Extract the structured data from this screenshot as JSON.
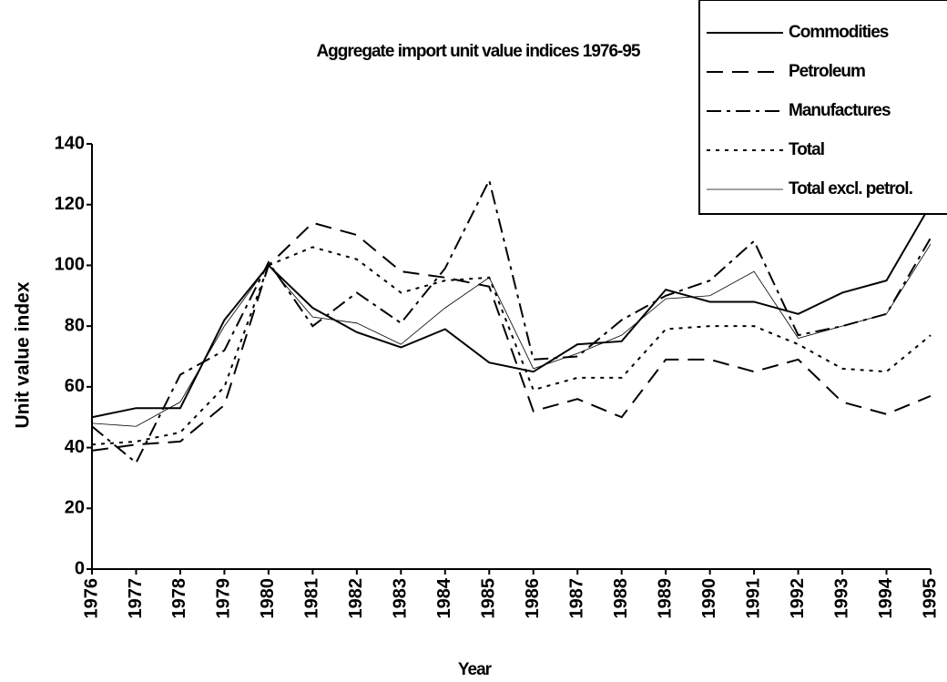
{
  "chart_data": {
    "type": "line",
    "title": "Aggregate import unit value indices 1976-95",
    "xlabel": "Year",
    "ylabel": "Unit value index",
    "categories": [
      "1976",
      "1977",
      "1978",
      "1979",
      "1980",
      "1981",
      "1982",
      "1983",
      "1984",
      "1985",
      "1986",
      "1987",
      "1988",
      "1989",
      "1990",
      "1991",
      "1992",
      "1993",
      "1994",
      "1995"
    ],
    "series": [
      {
        "name": "Commodities",
        "color": "#000000",
        "dash": "solid",
        "line_width": 2,
        "values": [
          50,
          53,
          53,
          82,
          100,
          86,
          78,
          73,
          79,
          68,
          65,
          74,
          75,
          92,
          88,
          88,
          84,
          91,
          95,
          120
        ]
      },
      {
        "name": "Petroleum",
        "color": "#000000",
        "dash": "dashed",
        "line_width": 2,
        "values": [
          39,
          41,
          42,
          54,
          100,
          114,
          110,
          98,
          96,
          93,
          52,
          56,
          50,
          69,
          69,
          65,
          69,
          55,
          51,
          57
        ]
      },
      {
        "name": "Manufactures",
        "color": "#000000",
        "dash": "dashdot",
        "line_width": 2,
        "values": [
          47,
          35,
          64,
          72,
          101,
          80,
          91,
          81,
          99,
          128,
          69,
          70,
          82,
          90,
          95,
          108,
          77,
          80,
          84,
          109
        ]
      },
      {
        "name": "Total",
        "color": "#000000",
        "dash": "dotted",
        "line_width": 2,
        "values": [
          41,
          42,
          45,
          60,
          100,
          106,
          102,
          91,
          95,
          96,
          59,
          63,
          63,
          79,
          80,
          80,
          74,
          66,
          65,
          77
        ]
      },
      {
        "name": "Total excl. petrol.",
        "color": "#000000",
        "dash": "solid",
        "line_width": 0.8,
        "values": [
          48,
          47,
          55,
          80,
          100,
          83,
          81,
          74,
          86,
          96,
          66,
          71,
          77,
          89,
          90,
          98,
          76,
          80,
          84,
          107
        ]
      }
    ],
    "ylim": [
      0,
      140
    ],
    "yticks": [
      0,
      20,
      40,
      60,
      80,
      100,
      120,
      140
    ],
    "grid": false,
    "legend": "upper right"
  }
}
